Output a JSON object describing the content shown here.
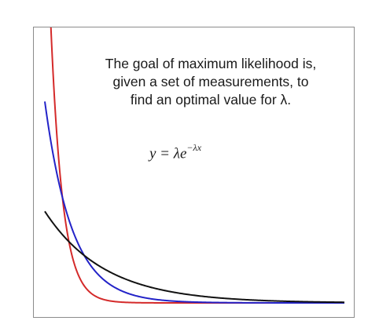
{
  "caption": {
    "lines": [
      "The goal of maximum likelihood is,",
      "given a set of measurements, to",
      "find an optimal value for λ."
    ]
  },
  "formula": {
    "lhs": "y = λe",
    "exponent": "−λx"
  },
  "colors": {
    "background": "#ffffff",
    "frame": "#8c8c8c",
    "text": "#1a1a1a"
  },
  "curves": [
    {
      "color": "#d42a2a",
      "lambda": 5.0
    },
    {
      "color": "#2323c8",
      "lambda": 2.2
    },
    {
      "color": "#111111",
      "lambda": 1.0
    }
  ]
}
